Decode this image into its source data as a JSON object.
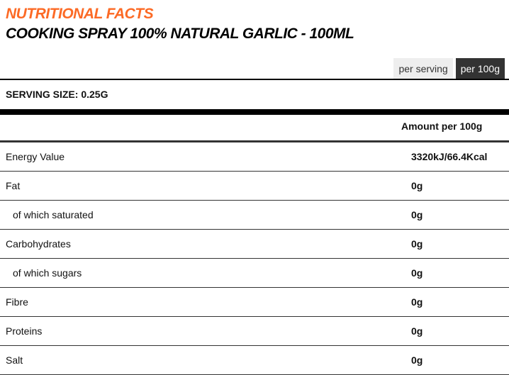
{
  "header": {
    "title": "NUTRITIONAL FACTS",
    "product": "COOKING SPRAY 100% NATURAL GARLIC - 100ML"
  },
  "tabs": [
    {
      "label": "per serving",
      "active": false
    },
    {
      "label": "per 100g",
      "active": true
    }
  ],
  "serving_size": "SERVING SIZE: 0.25G",
  "column_header": "Amount per 100g",
  "rows": [
    {
      "name": "Energy Value",
      "value": "3320kJ/66.4Kcal",
      "sub": false
    },
    {
      "name": "Fat",
      "value": "0g",
      "sub": false
    },
    {
      "name": "of which saturated",
      "value": "0g",
      "sub": true
    },
    {
      "name": "Carbohydrates",
      "value": "0g",
      "sub": false
    },
    {
      "name": "of which sugars",
      "value": "0g",
      "sub": true
    },
    {
      "name": "Fibre",
      "value": "0g",
      "sub": false
    },
    {
      "name": "Proteins",
      "value": "0g",
      "sub": false
    },
    {
      "name": "Salt",
      "value": "0g",
      "sub": false
    }
  ],
  "colors": {
    "accent": "#fc6a25",
    "active_tab": "#333333"
  }
}
